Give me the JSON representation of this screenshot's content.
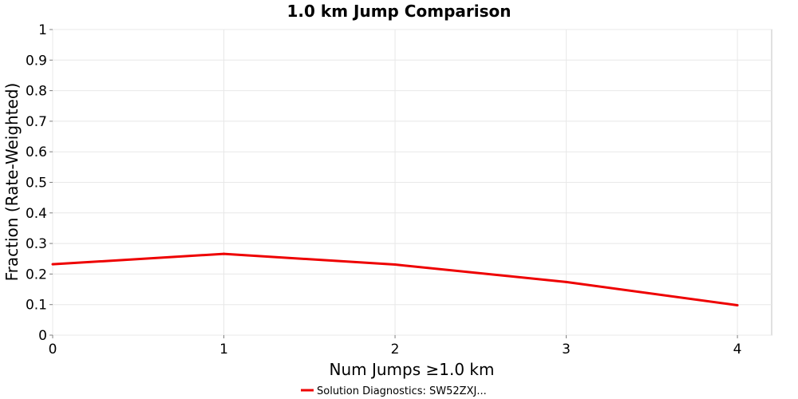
{
  "chart_data": {
    "type": "line",
    "title": "1.0 km Jump Comparison",
    "xlabel": "Num Jumps ≥1.0 km",
    "ylabel": "Fraction (Rate-Weighted)",
    "xlim": [
      0,
      4.2
    ],
    "ylim": [
      0,
      1
    ],
    "xticks": [
      0,
      1,
      2,
      3,
      4
    ],
    "xtick_labels": [
      "0",
      "1",
      "2",
      "3",
      "4"
    ],
    "yticks": [
      0,
      0.1,
      0.2,
      0.3,
      0.4,
      0.5,
      0.6,
      0.7,
      0.8,
      0.9,
      1
    ],
    "ytick_labels": [
      "0",
      "0.1",
      "0.2",
      "0.3",
      "0.4",
      "0.5",
      "0.6",
      "0.7",
      "0.8",
      "0.9",
      "1"
    ],
    "grid": true,
    "legend_position": "bottom-center",
    "series": [
      {
        "name": "Solution Diagnostics: SW52ZXJ...",
        "color": "#ee0000",
        "x": [
          0,
          1,
          2,
          3,
          4
        ],
        "y": [
          0.232,
          0.266,
          0.231,
          0.174,
          0.098
        ]
      }
    ]
  }
}
